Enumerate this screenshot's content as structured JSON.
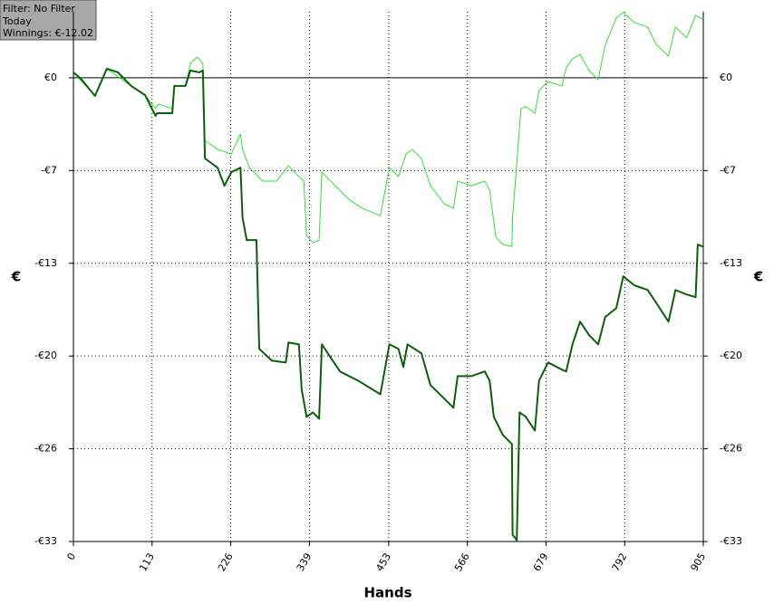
{
  "chart_data": {
    "type": "line",
    "info_box": [
      "Filter: No Filter",
      "Today",
      "Winnings: €-12.02"
    ],
    "x_label": "Hands",
    "y_label": "€",
    "xlim": [
      0,
      905
    ],
    "xticks": [
      0,
      113,
      226,
      339,
      453,
      566,
      679,
      792,
      905
    ],
    "ylim": [
      -33,
      4.7
    ],
    "yticks": [
      {
        "value": 0,
        "label": "€0"
      },
      {
        "value": -6.6,
        "label": "-€7"
      },
      {
        "value": -13.2,
        "label": "-€13"
      },
      {
        "value": -19.8,
        "label": "-€20"
      },
      {
        "value": -26.4,
        "label": "-€26"
      },
      {
        "value": -33,
        "label": "-€33"
      }
    ],
    "grid": true,
    "series": [
      {
        "color": "#33dd33",
        "width": 1,
        "x": [
          0,
          31,
          48,
          83,
          103,
          118,
          122,
          142,
          145,
          161,
          168,
          178,
          186,
          189,
          207,
          227,
          240,
          243,
          253,
          272,
          292,
          309,
          324,
          331,
          335,
          344,
          353,
          357,
          376,
          396,
          415,
          441,
          454,
          467,
          478,
          487,
          500,
          513,
          533,
          546,
          552,
          572,
          591,
          598,
          607,
          617,
          630,
          631,
          637,
          643,
          650,
          663,
          669,
          682,
          702,
          708,
          717,
          728,
          741,
          754,
          764,
          780,
          790,
          806,
          825,
          838,
          855,
          865,
          881,
          894,
          905
        ],
        "values": [
          0.39,
          -1.29,
          0.65,
          -0.58,
          -1.23,
          -2.19,
          -1.87,
          -2.19,
          -0.58,
          -0.58,
          1.03,
          1.48,
          1.03,
          -4.45,
          -5.1,
          -5.42,
          -4.0,
          -5.1,
          -6.39,
          -7.35,
          -7.35,
          -6.26,
          -7.03,
          -7.35,
          -11.23,
          -11.74,
          -11.55,
          -6.71,
          -7.68,
          -8.65,
          -9.29,
          -9.81,
          -6.39,
          -7.03,
          -5.42,
          -5.1,
          -5.74,
          -7.68,
          -8.97,
          -9.29,
          -7.35,
          -7.68,
          -7.35,
          -8.0,
          -11.35,
          -11.87,
          -12.0,
          -9.94,
          -6.06,
          -2.19,
          -2.06,
          -2.52,
          -0.9,
          -0.26,
          -0.58,
          0.71,
          1.35,
          1.68,
          0.52,
          -0.13,
          2.32,
          4.26,
          4.65,
          3.94,
          3.61,
          2.32,
          1.55,
          3.61,
          2.84,
          4.45,
          4.13
        ]
      },
      {
        "color": "#0b5e0b",
        "width": 2,
        "x": [
          0,
          12,
          31,
          48,
          64,
          83,
          103,
          118,
          120,
          142,
          145,
          161,
          168,
          181,
          186,
          189,
          207,
          217,
          227,
          240,
          243,
          249,
          263,
          267,
          285,
          305,
          309,
          324,
          328,
          335,
          344,
          353,
          357,
          370,
          383,
          409,
          441,
          454,
          467,
          474,
          480,
          500,
          513,
          533,
          546,
          552,
          572,
          591,
          598,
          604,
          617,
          630,
          631,
          637,
          641,
          650,
          663,
          669,
          682,
          702,
          708,
          717,
          728,
          741,
          754,
          764,
          780,
          790,
          806,
          825,
          838,
          855,
          865,
          881,
          894,
          897,
          905
        ],
        "values": [
          0.39,
          -0.13,
          -1.29,
          0.65,
          0.39,
          -0.58,
          -1.23,
          -2.71,
          -2.52,
          -2.52,
          -0.58,
          -0.58,
          0.52,
          0.39,
          0.52,
          -5.74,
          -6.39,
          -7.68,
          -6.71,
          -6.39,
          -9.94,
          -11.55,
          -11.55,
          -19.29,
          -20.13,
          -20.26,
          -18.84,
          -18.97,
          -22.19,
          -24.13,
          -23.81,
          -24.26,
          -18.97,
          -19.94,
          -20.9,
          -21.55,
          -22.52,
          -18.97,
          -19.29,
          -20.58,
          -18.97,
          -19.61,
          -21.87,
          -22.84,
          -23.48,
          -21.23,
          -21.23,
          -20.9,
          -21.55,
          -24.13,
          -25.42,
          -26.06,
          -32.52,
          -32.9,
          -23.81,
          -24.13,
          -25.1,
          -21.55,
          -20.26,
          -20.77,
          -20.9,
          -18.97,
          -17.35,
          -18.32,
          -18.97,
          -17.03,
          -16.39,
          -14.13,
          -14.77,
          -15.1,
          -16.06,
          -17.35,
          -15.1,
          -15.42,
          -15.61,
          -11.87,
          -12.02
        ]
      }
    ]
  }
}
